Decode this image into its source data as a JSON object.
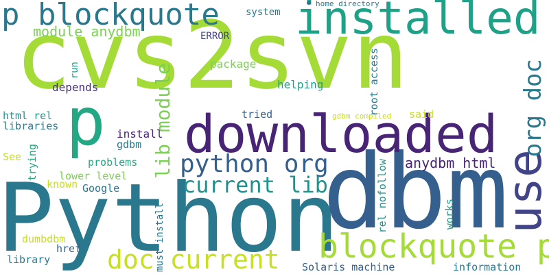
{
  "colors": {
    "background": "#ffffff",
    "lime": "#a5db36",
    "green_light": "#7ad151",
    "yellow_green": "#c8e020",
    "green": "#22a884",
    "teal_green": "#1fa187",
    "teal": "#21918c",
    "blue_teal": "#2a788e",
    "slate": "#355f8d",
    "indigo": "#414487",
    "purple": "#482475",
    "dark_purple": "#46327e"
  },
  "words": {
    "cvs2svn": "cvs2svn",
    "python_big": "Python",
    "dbm": "dbm",
    "downloaded": "downloaded",
    "installed": "installed",
    "p_blockquote": "p blockquote",
    "p_big": "p",
    "use": "use",
    "blockquote_p": "blockquote p",
    "python_org": "python org",
    "current_lib": "current lib",
    "doc_current": "doc current",
    "lib_module": "lib module",
    "org_doc": "org doc",
    "module_anydbm": "module anydbm",
    "anydbm_html": "anydbm html",
    "system": "system",
    "home_directory": "home directory",
    "error": "ERROR",
    "run": "run",
    "package": "package",
    "depends": "depends",
    "helping": "helping",
    "root_access": "root access",
    "html_rel": "html rel",
    "libraries": "libraries",
    "tried": "tried",
    "gdbm_compiled": "gdbm compiled",
    "said": "said",
    "install": "install",
    "gdbm": "gdbm",
    "see": "See",
    "trying": "trying",
    "problems": "problems",
    "lower_level": "lower level",
    "known": "known",
    "google": "Google",
    "rel_nofollow": "rel nofollow",
    "works": "works",
    "dumbdbm": "dumbdbm",
    "href": "href",
    "library": "library",
    "must_install": "must install",
    "solaris_machine": "Solaris machine",
    "information": "information"
  }
}
